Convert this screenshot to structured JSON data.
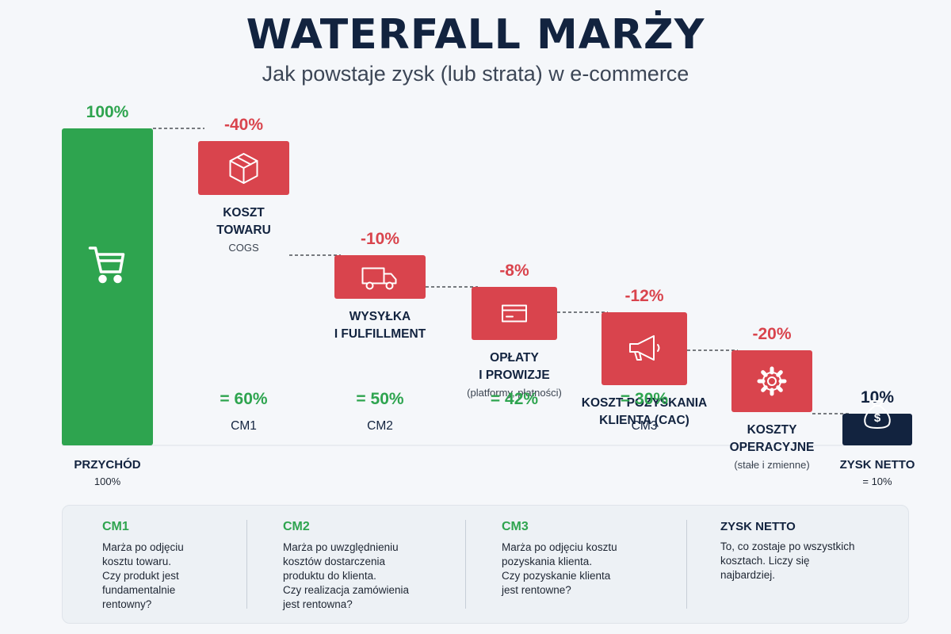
{
  "header": {
    "title": "WATERFALL MARŻY",
    "subtitle": "Jak powstaje zysk (lub strata) w e-commerce"
  },
  "colors": {
    "revenue": "#2ea44f",
    "cost": "#d9444d",
    "net": "#12233f",
    "margin_text": "#2ea44f"
  },
  "chart_data": {
    "type": "bar",
    "subtype": "waterfall",
    "title": "WATERFALL MARŻY",
    "subtitle": "Jak powstaje zysk (lub strata) w e-commerce",
    "unit": "%",
    "ylim": [
      0,
      100
    ],
    "grid": false,
    "steps": [
      {
        "kind": "total",
        "label": "PRZYCHÓD",
        "sublabel": "100%",
        "value": 100,
        "value_label": "100%",
        "icon": "cart-icon"
      },
      {
        "kind": "delta",
        "label": "KOSZT\nTOWARU",
        "sublabel": "COGS",
        "value": -40,
        "value_label": "-40%",
        "icon": "box-icon",
        "running": "= 60%",
        "margin_name": "CM1"
      },
      {
        "kind": "delta",
        "label": "WYSYŁKA\nI FULFILLMENT",
        "sublabel": "",
        "value": -10,
        "value_label": "-10%",
        "icon": "truck-icon",
        "running": "= 50%",
        "margin_name": "CM2"
      },
      {
        "kind": "delta",
        "label": "OPŁATY\nI PROWIZJE",
        "sublabel": "(platformy, płatności)",
        "value": -8,
        "value_label": "-8%",
        "icon": "credit-card-icon",
        "running": "= 42%",
        "margin_name": ""
      },
      {
        "kind": "delta",
        "label": "KOSZT POZYSKANIA\nKLIENTA (CAC)",
        "sublabel": "",
        "value": -12,
        "value_label": "-12%",
        "icon": "megaphone-icon",
        "running": "= 30%",
        "margin_name": "CM3"
      },
      {
        "kind": "delta",
        "label": "KOSZTY\nOPERACYJNE",
        "sublabel": "(stałe i zmienne)",
        "value": -20,
        "value_label": "-20%",
        "icon": "gear-icon",
        "running": "",
        "margin_name": ""
      },
      {
        "kind": "total",
        "label": "ZYSK NETTO",
        "sublabel": "= 10%",
        "value": 10,
        "value_label": "10%",
        "icon": "money-bag-icon"
      }
    ]
  },
  "legend": [
    {
      "title": "CM1",
      "text": "Marża po odjęciu\nkosztu towaru.\nCzy produkt jest\nfundamentalnie\nrentowny?"
    },
    {
      "title": "CM2",
      "text": "Marża po uwzględnieniu\nkosztów dostarczenia\nproduktu do klienta.\nCzy realizacja zamówienia\njest rentowna?"
    },
    {
      "title": "CM3",
      "text": "Marża po odjęciu kosztu\npozyskania klienta.\nCzy pozyskanie klienta\njest rentowne?"
    },
    {
      "title": "ZYSK NETTO",
      "text": "To, co zostaje po wszystkich\nkosztach. Liczy się\nnajbardziej."
    }
  ]
}
